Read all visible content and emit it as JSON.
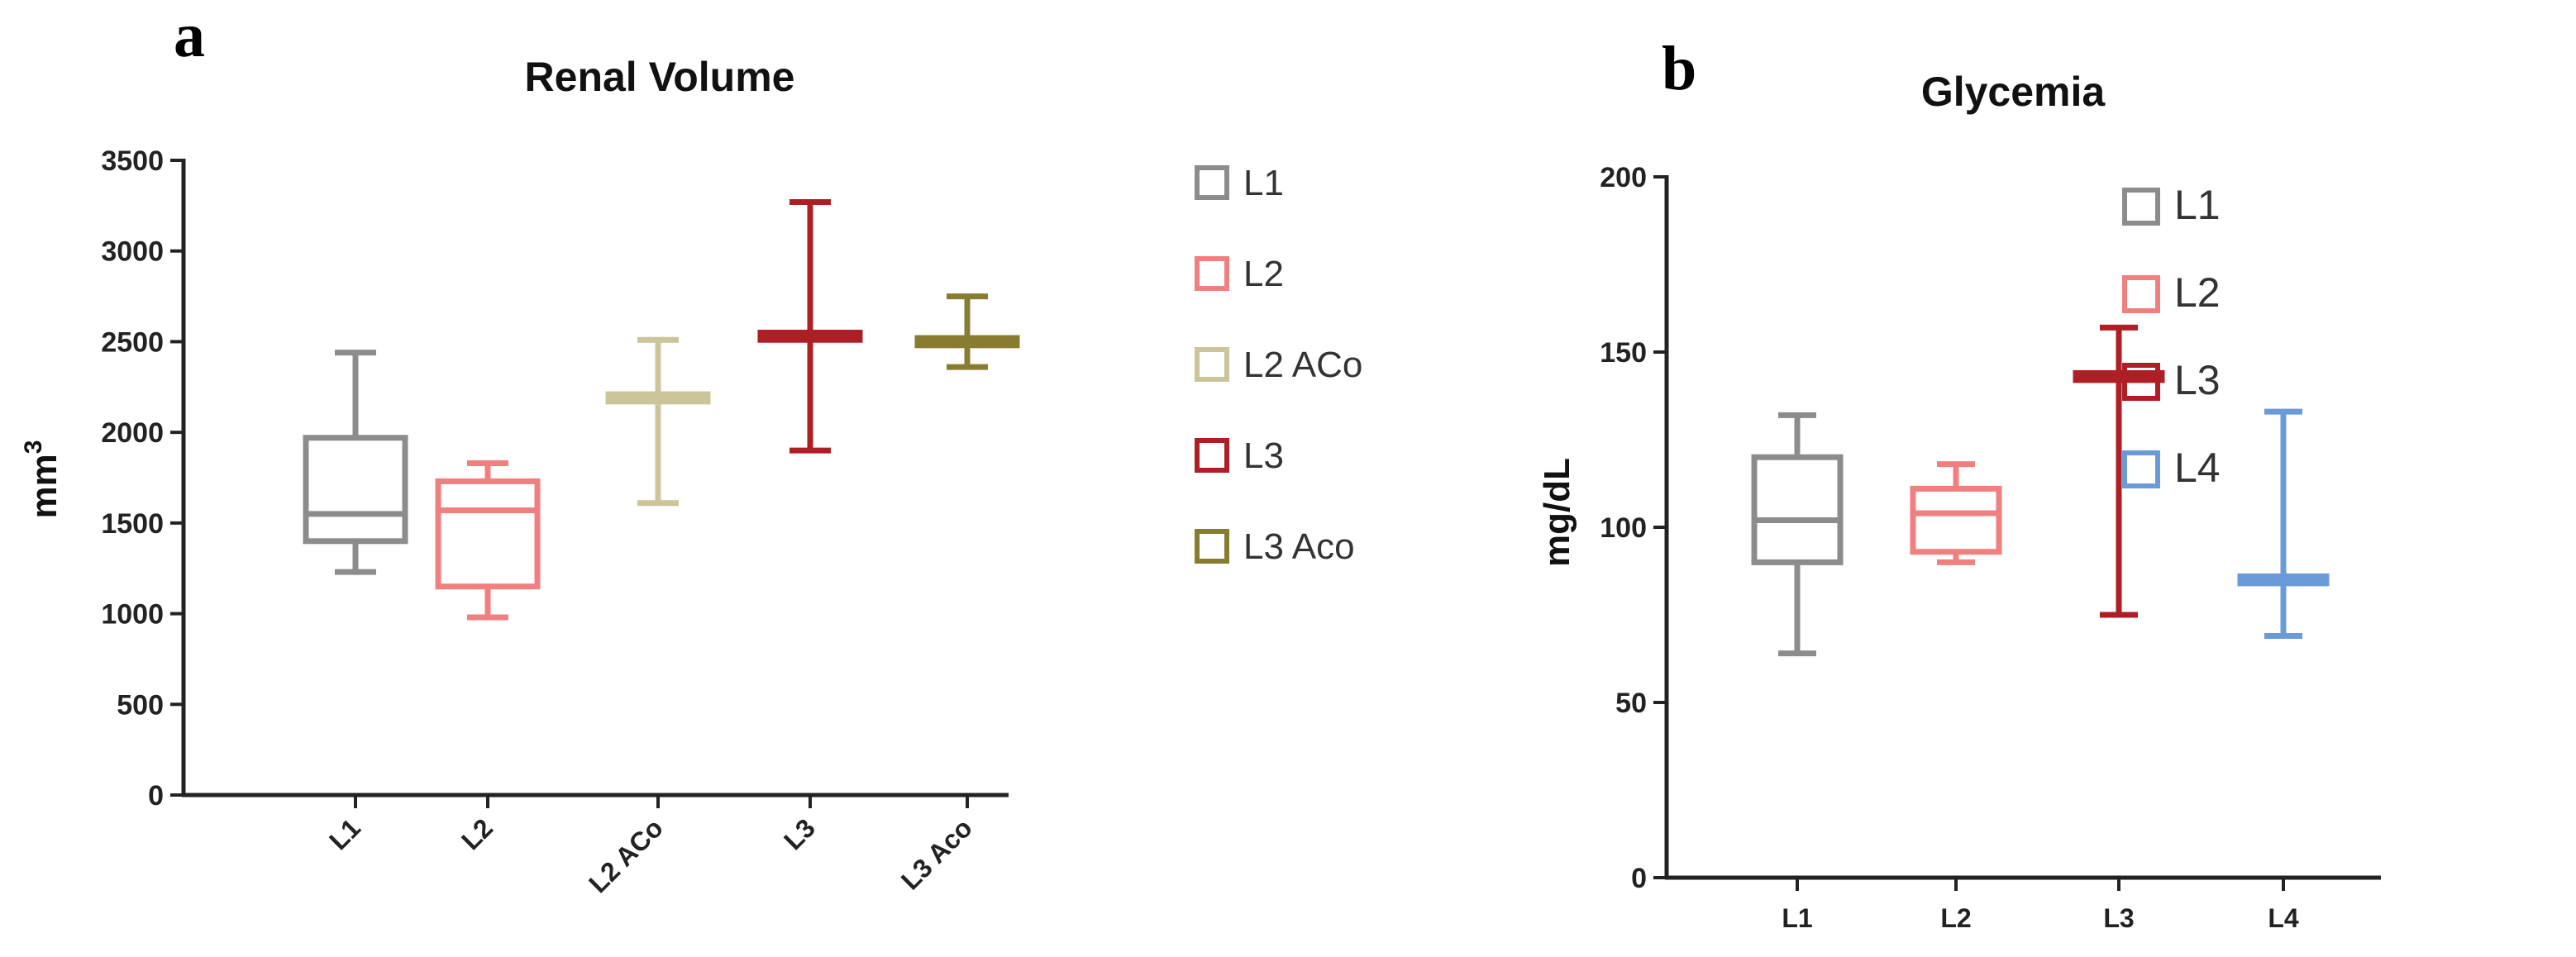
{
  "chart_data": [
    {
      "panel_label": "a",
      "type": "box",
      "title": "Renal Volume",
      "xlabel": "",
      "ylabel_base": "mm",
      "ylabel_superscript": "3",
      "ylim": [
        0,
        3500
      ],
      "yticks": [
        "0",
        "500",
        "1000",
        "1500",
        "2000",
        "2500",
        "3000",
        "3500"
      ],
      "categories": [
        "L1",
        "L2",
        "L2 ACo",
        "L3",
        "L3 Aco"
      ],
      "series": [
        {
          "name": "L1",
          "color": "#8c8c8c",
          "min": 1230,
          "q1": 1400,
          "median": 1550,
          "q3": 1970,
          "max": 2440
        },
        {
          "name": "L2",
          "color": "#f08080",
          "min": 980,
          "q1": 1150,
          "median": 1570,
          "q3": 1730,
          "max": 1830
        },
        {
          "name": "L2 ACo",
          "color": "#ccc49a",
          "min": 1610,
          "q1": 2170,
          "median": 2190,
          "q3": 2210,
          "max": 2510
        },
        {
          "name": "L3",
          "color": "#ad1f24",
          "min": 1900,
          "q1": 2510,
          "median": 2530,
          "q3": 2550,
          "max": 3270
        },
        {
          "name": "L3 Aco",
          "color": "#877c30",
          "min": 2360,
          "q1": 2480,
          "median": 2500,
          "q3": 2520,
          "max": 2750
        }
      ],
      "legend": [
        "L1",
        "L2",
        "L2 ACo",
        "L3",
        "L3 Aco"
      ],
      "legend_position": "right"
    },
    {
      "panel_label": "b",
      "type": "box",
      "title": "Glycemia",
      "xlabel": "",
      "ylabel": "mg/dL",
      "ylim": [
        0,
        200
      ],
      "yticks": [
        "0",
        "50",
        "100",
        "150",
        "200"
      ],
      "categories": [
        "L1",
        "L2",
        "L3",
        "L4"
      ],
      "series": [
        {
          "name": "L1",
          "color": "#8c8c8c",
          "min": 64,
          "q1": 90,
          "median": 102,
          "q3": 120,
          "max": 132
        },
        {
          "name": "L2",
          "color": "#f08080",
          "min": 90,
          "q1": 93,
          "median": 104,
          "q3": 111,
          "max": 118
        },
        {
          "name": "L3",
          "color": "#ad1f24",
          "min": 75,
          "q1": 142,
          "median": 143,
          "q3": 144,
          "max": 157
        },
        {
          "name": "L4",
          "color": "#6a9bd8",
          "min": 69,
          "q1": 84,
          "median": 85,
          "q3": 86,
          "max": 133
        }
      ],
      "legend": [
        "L1",
        "L2",
        "L3",
        "L4"
      ],
      "legend_position": "right"
    }
  ]
}
